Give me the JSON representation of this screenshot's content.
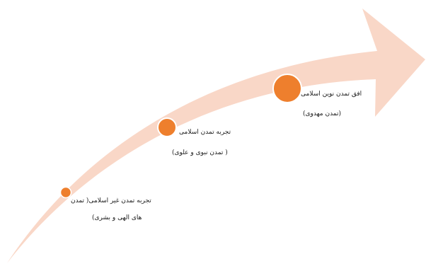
{
  "colors": {
    "arrow": "#f9d7c7",
    "dot": "#ee7f2d",
    "dot_stroke": "#ffffff",
    "text": "#1a1a1a"
  },
  "stages": [
    {
      "title": "تجربه تمدن غیر اسلامی( تمدن",
      "subtitle": "های الهی و بشری)"
    },
    {
      "title": "تجربه تمدن اسلامی",
      "subtitle": "( تمدن نبوی و علوی)"
    },
    {
      "title": "افق تمدن نوین اسلامی",
      "subtitle": "(تمدن مهدوی)"
    }
  ]
}
